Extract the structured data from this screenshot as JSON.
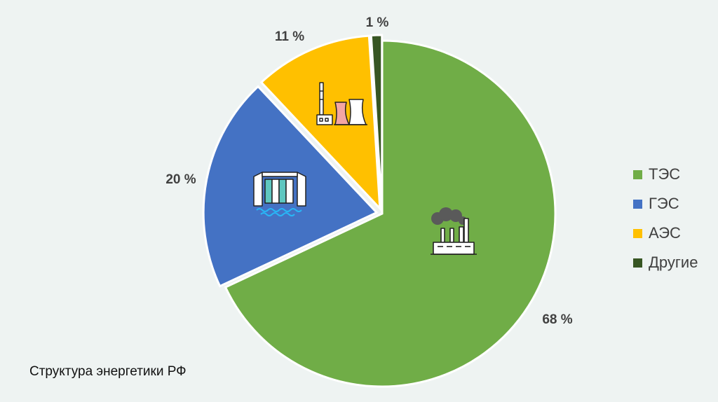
{
  "chart_data": {
    "type": "pie",
    "categories": [
      "ТЭС",
      "ГЭС",
      "АЭС",
      "Другие"
    ],
    "values": [
      68,
      20,
      11,
      1
    ],
    "data_labels": [
      "68 %",
      "20 %",
      "11 %",
      "1 %"
    ],
    "colors": [
      "#70ad47",
      "#4472c4",
      "#ffc000",
      "#375623"
    ],
    "legend_placement": "right",
    "icons": [
      "thermal-plant-icon",
      "hydro-dam-icon",
      "nuclear-plant-icon"
    ]
  },
  "caption": "Структура энергетики РФ"
}
